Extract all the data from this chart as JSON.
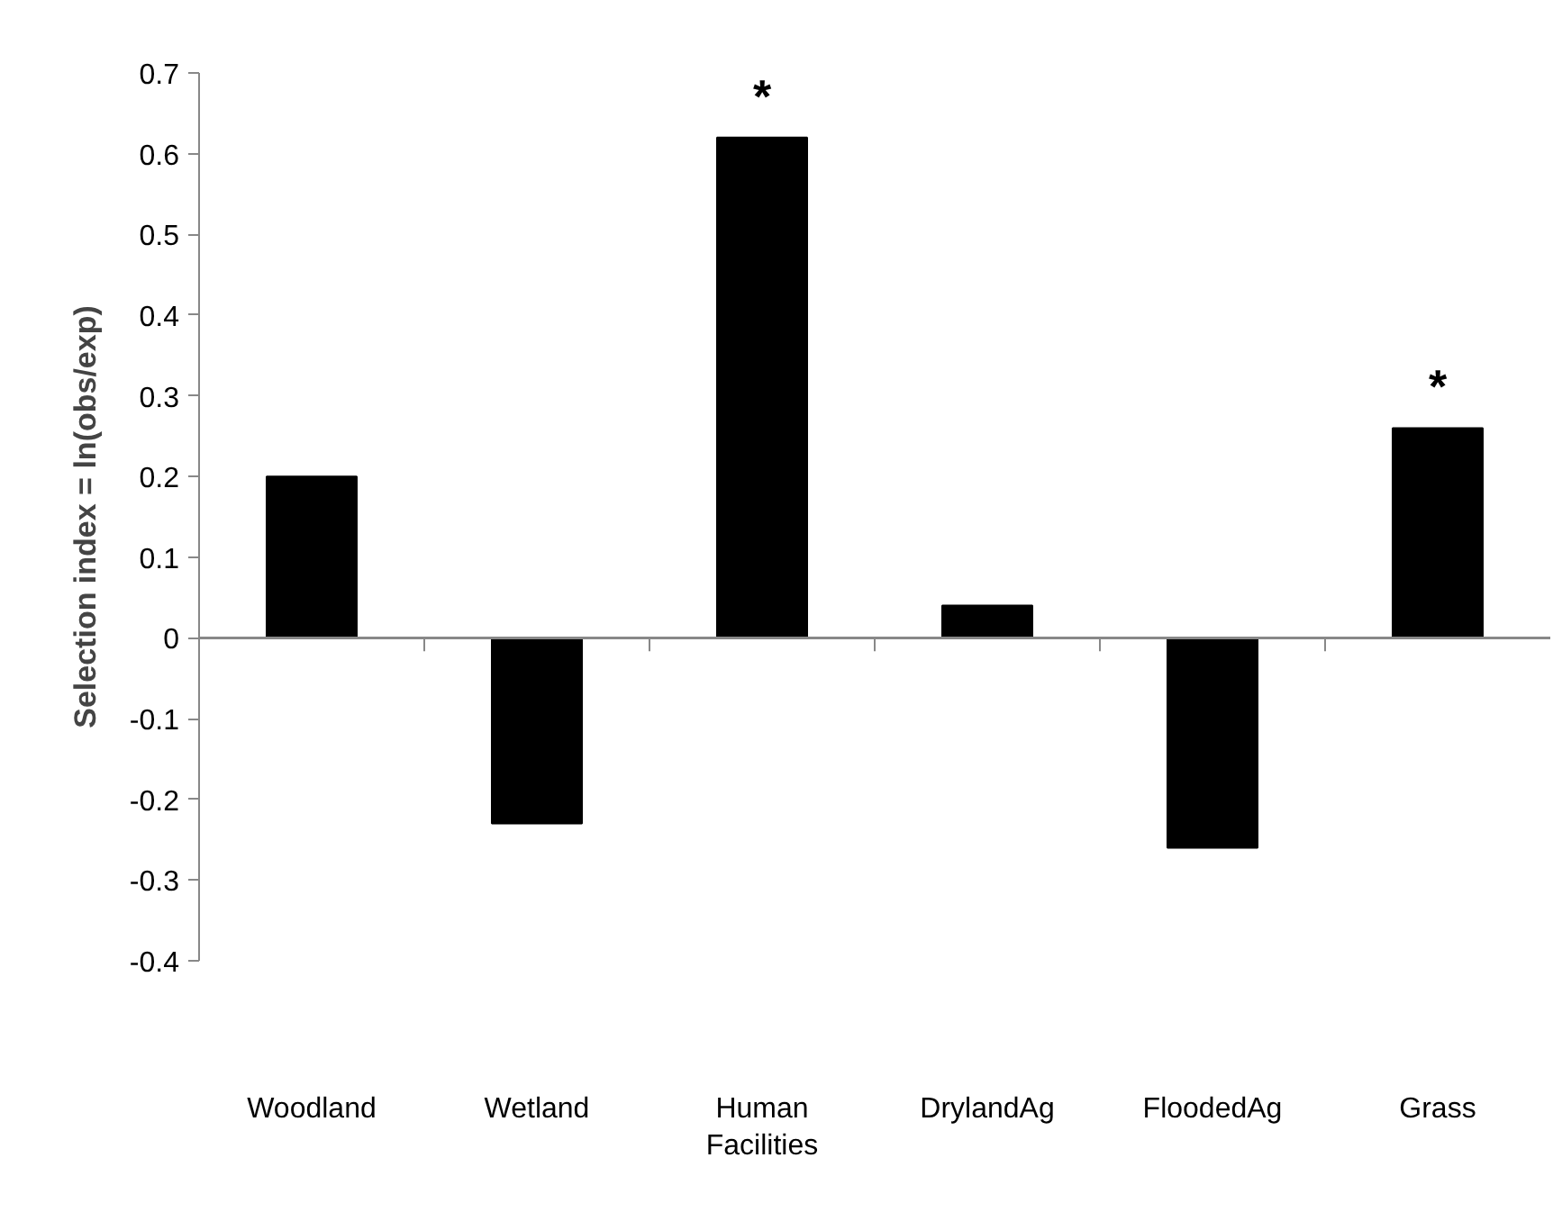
{
  "chart_data": {
    "type": "bar",
    "ylabel": "Selection index = ln(obs/exp)",
    "categories": [
      "Woodland",
      "Wetland",
      "Human Facilities",
      "DrylandAg",
      "FloodedAg",
      "Grass"
    ],
    "values": [
      0.2,
      -0.23,
      0.62,
      0.04,
      -0.26,
      0.26
    ],
    "color": "#000000",
    "ylim": [
      -0.4,
      0.7
    ],
    "yticks": [
      -0.4,
      -0.3,
      -0.2,
      -0.1,
      0,
      0.1,
      0.2,
      0.3,
      0.4,
      0.5,
      0.6,
      0.7
    ],
    "annotations": [
      {
        "text": "*",
        "x": "Human Facilities",
        "y": 0.62
      },
      {
        "text": "*",
        "x": "Grass",
        "y": 0.26
      }
    ]
  }
}
